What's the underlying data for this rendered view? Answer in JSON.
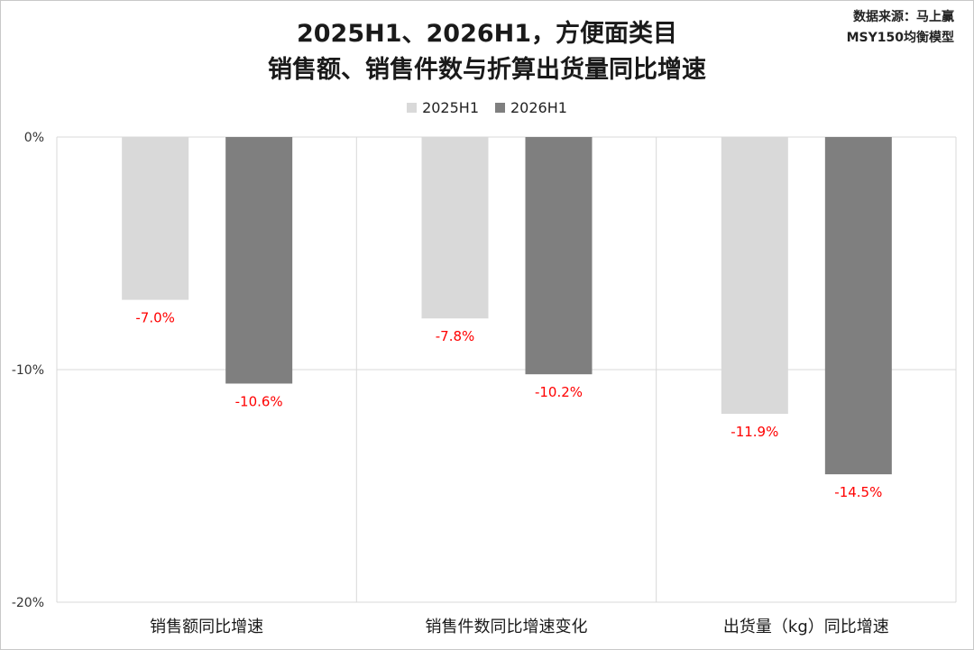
{
  "chart_data": {
    "type": "bar",
    "title_line1": "2025H1、2026H1，方便面类目",
    "title_line2": "销售额、销售件数与折算出货量同比增速",
    "source_line1": "数据来源：马上赢",
    "source_line2": "MSY150均衡模型",
    "categories": [
      "销售额同比增速",
      "销售件数同比增速变化",
      "出货量（kg）同比增速"
    ],
    "series": [
      {
        "name": "2025H1",
        "values": [
          -7.0,
          -7.8,
          -11.9
        ],
        "labels": [
          "-7.0%",
          "-7.8%",
          "-11.9%"
        ],
        "color": "#d9d9d9"
      },
      {
        "name": "2026H1",
        "values": [
          -10.6,
          -10.2,
          -14.5
        ],
        "labels": [
          "-10.6%",
          "-10.2%",
          "-14.5%"
        ],
        "color": "#7f7f7f"
      }
    ],
    "ylim": [
      -20,
      0
    ],
    "yticks": [
      0,
      -10,
      -20
    ],
    "ytick_labels": [
      "0%",
      "-10%",
      "-20%"
    ],
    "label_color": "#ff0000",
    "grid": true,
    "legend_position": "top"
  }
}
